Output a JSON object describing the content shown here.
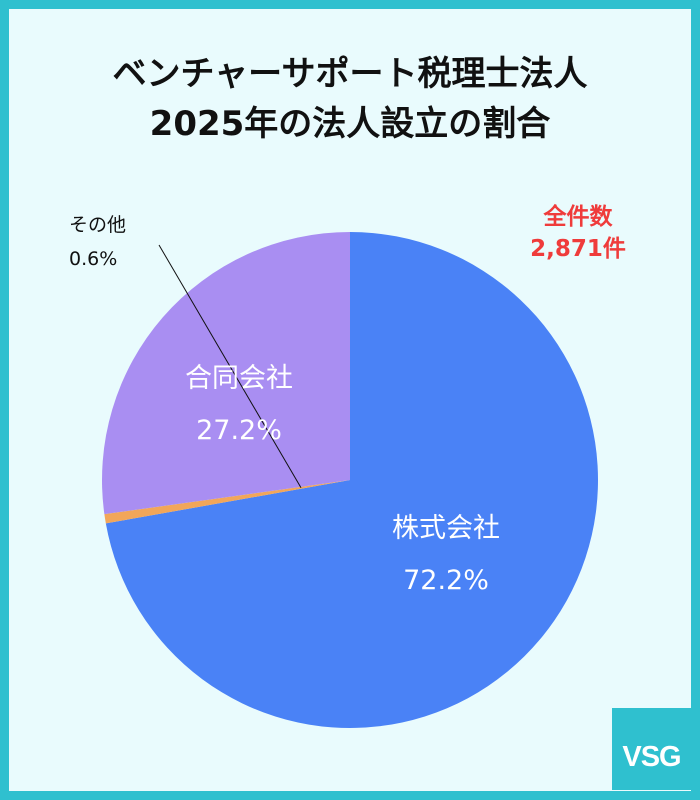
{
  "title": {
    "line1": "ベンチャーサポート税理士法人",
    "line2": "2025年の法人設立の割合"
  },
  "total": {
    "label": "全件数",
    "value": "2,871件"
  },
  "logo": {
    "text": "VSG"
  },
  "colors": {
    "frame": "#2fc0cf",
    "background": "#e9fbfd",
    "total_text": "#ef3b3b",
    "title_text": "#111111"
  },
  "chart_data": {
    "type": "pie",
    "slices": [
      {
        "name": "株式会社",
        "value": 72.2,
        "label": "72.2%",
        "color": "#4a82f6",
        "label_color": "#ffffff"
      },
      {
        "name": "その他",
        "value": 0.6,
        "label": "0.6%",
        "color": "#f2a65a",
        "label_color": "#111111"
      },
      {
        "name": "合同会社",
        "value": 27.2,
        "label": "27.2%",
        "color": "#a98ef2",
        "label_color": "#ffffff"
      }
    ],
    "start": "12 o'clock",
    "direction": "clockwise"
  }
}
